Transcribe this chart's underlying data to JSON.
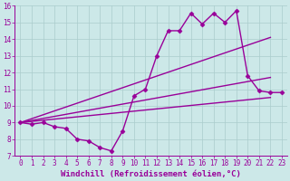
{
  "xlabel": "Windchill (Refroidissement éolien,°C)",
  "bg_color": "#cce8e8",
  "grid_color": "#aacccc",
  "line_color": "#990099",
  "xlim": [
    -0.5,
    23.5
  ],
  "ylim": [
    7,
    16
  ],
  "xticks": [
    0,
    1,
    2,
    3,
    4,
    5,
    6,
    7,
    8,
    9,
    10,
    11,
    12,
    13,
    14,
    15,
    16,
    17,
    18,
    19,
    20,
    21,
    22,
    23
  ],
  "yticks": [
    7,
    8,
    9,
    10,
    11,
    12,
    13,
    14,
    15,
    16
  ],
  "line1_x": [
    0,
    1,
    2,
    3,
    4,
    5,
    6,
    7,
    8,
    9,
    10,
    11,
    12,
    13,
    14,
    15,
    16,
    17,
    18,
    19,
    20,
    21,
    22,
    23
  ],
  "line1_y": [
    9.0,
    8.9,
    9.0,
    8.75,
    8.65,
    8.0,
    7.9,
    7.5,
    7.3,
    8.5,
    10.6,
    11.0,
    13.0,
    14.5,
    14.5,
    15.55,
    14.9,
    15.55,
    15.0,
    15.7,
    11.8,
    10.9,
    10.8,
    10.8
  ],
  "line2_x": [
    0,
    22
  ],
  "line2_y": [
    9.0,
    14.1
  ],
  "line3_x": [
    0,
    22
  ],
  "line3_y": [
    9.0,
    11.7
  ],
  "line4_x": [
    0,
    22
  ],
  "line4_y": [
    9.0,
    10.5
  ],
  "marker": "D",
  "markersize": 2.5,
  "linewidth": 1.0,
  "xlabel_fontsize": 6.5,
  "tick_fontsize": 5.5
}
